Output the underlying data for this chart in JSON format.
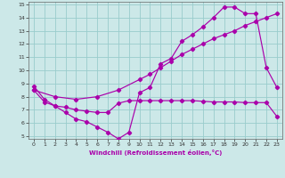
{
  "xlabel": "Windchill (Refroidissement éolien,°C)",
  "bg_color": "#cce8e8",
  "line_color": "#aa00aa",
  "grid_color": "#99cccc",
  "xlim": [
    -0.5,
    23.5
  ],
  "ylim": [
    4.8,
    15.2
  ],
  "xticks": [
    0,
    1,
    2,
    3,
    4,
    5,
    6,
    7,
    8,
    9,
    10,
    11,
    12,
    13,
    14,
    15,
    16,
    17,
    18,
    19,
    20,
    21,
    22,
    23
  ],
  "yticks": [
    5,
    6,
    7,
    8,
    9,
    10,
    11,
    12,
    13,
    14,
    15
  ],
  "line1_x": [
    0,
    1,
    2,
    3,
    4,
    5,
    6,
    7,
    8,
    9,
    10,
    11,
    12,
    13,
    14,
    15,
    16,
    17,
    18,
    19,
    20,
    21,
    22,
    23
  ],
  "line1_y": [
    8.8,
    7.8,
    7.3,
    6.8,
    6.3,
    6.1,
    5.7,
    5.3,
    4.8,
    5.3,
    8.3,
    8.7,
    10.5,
    10.9,
    12.2,
    12.7,
    13.3,
    14.0,
    14.8,
    14.8,
    14.3,
    14.3,
    10.2,
    8.7
  ],
  "line2_x": [
    0,
    2,
    4,
    6,
    8,
    10,
    11,
    12,
    13,
    14,
    15,
    16,
    17,
    18,
    19,
    20,
    21,
    22,
    23
  ],
  "line2_y": [
    8.5,
    8.0,
    7.8,
    8.0,
    8.5,
    9.3,
    9.7,
    10.2,
    10.7,
    11.2,
    11.6,
    12.0,
    12.4,
    12.7,
    13.0,
    13.4,
    13.7,
    14.0,
    14.3
  ],
  "line3_x": [
    0,
    1,
    2,
    3,
    4,
    5,
    6,
    7,
    8,
    9,
    10,
    11,
    12,
    13,
    14,
    15,
    16,
    17,
    18,
    19,
    20,
    21,
    22,
    23
  ],
  "line3_y": [
    8.5,
    7.6,
    7.3,
    7.2,
    7.0,
    6.9,
    6.8,
    6.8,
    7.5,
    7.7,
    7.7,
    7.7,
    7.7,
    7.7,
    7.7,
    7.7,
    7.65,
    7.6,
    7.6,
    7.6,
    7.55,
    7.55,
    7.55,
    6.5
  ]
}
